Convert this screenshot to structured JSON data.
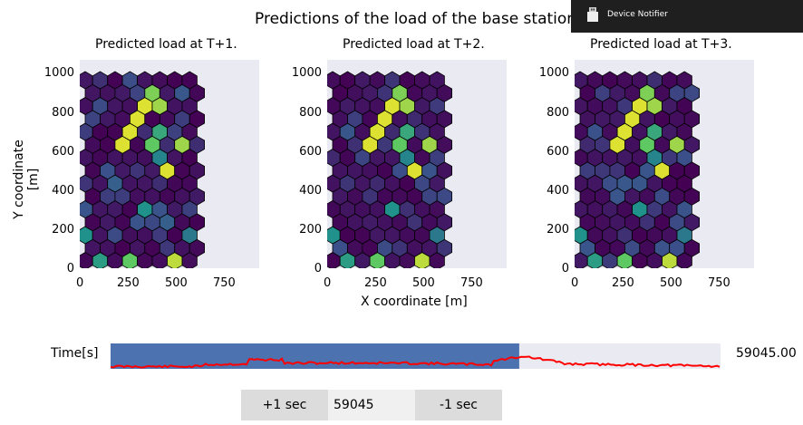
{
  "figure": {
    "suptitle": "Predictions of the load of the base stations",
    "ylabel": "Y coordinate [m]",
    "xlabel": "X coordinate [m]",
    "xticks": [
      "0",
      "250",
      "500",
      "750"
    ],
    "yticks": [
      "1000",
      "800",
      "600",
      "400",
      "200",
      "0"
    ],
    "panels": [
      {
        "title": "Predicted load at T+1."
      },
      {
        "title": "Predicted load at T+2."
      },
      {
        "title": "Predicted load at T+3."
      }
    ]
  },
  "notifier": {
    "label": "Device Notifier",
    "icon": "usb-drive-icon"
  },
  "time_slider": {
    "label": "Time[s]",
    "value_text": "59045.00",
    "value": 59045,
    "fill_fraction": 0.67,
    "fill_color": "#4c72b0",
    "track_color": "#eaeaf2",
    "line_color": "#ff0000"
  },
  "controls": {
    "plus_label": "+1 sec",
    "textbox_value": "59045",
    "minus_label": "-1 sec"
  },
  "chart_data": [
    {
      "type": "heatmap",
      "title": "Predicted load at T+1.",
      "xlabel": "",
      "ylabel": "Y coordinate [m]",
      "xlim": [
        0,
        900
      ],
      "ylim": [
        0,
        1050
      ],
      "hot": [
        [
          0,
          1,
          0.55
        ],
        [
          0,
          3,
          0.75
        ],
        [
          0,
          6,
          0.9
        ],
        [
          1,
          9,
          0.95
        ],
        [
          2,
          0,
          0.5
        ],
        [
          3,
          11,
          0.85
        ],
        [
          4,
          4,
          0.5
        ],
        [
          5,
          10,
          0.6
        ],
        [
          6,
          12,
          0.4
        ],
        [
          6,
          2,
          0.3
        ],
        [
          7,
          14,
          0.95
        ],
        [
          7,
          5,
          0.95
        ],
        [
          7,
          8,
          0.5
        ],
        [
          8,
          11,
          0.4
        ],
        [
          8,
          9,
          0.55
        ],
        [
          9,
          2,
          0.95
        ],
        [
          9,
          4,
          0.75
        ],
        [
          9,
          6,
          0.85
        ],
        [
          10,
          3,
          0.95
        ],
        [
          10,
          5,
          0.6
        ],
        [
          11,
          8,
          0.75
        ],
        [
          11,
          3,
          0.95
        ],
        [
          12,
          5,
          0.85
        ],
        [
          12,
          4,
          0.95
        ],
        [
          13,
          4,
          0.8
        ],
        [
          8,
          5,
          0.45
        ],
        [
          2,
          7,
          0.4
        ],
        [
          5,
          12,
          0.35
        ],
        [
          3,
          5,
          0.3
        ]
      ]
    },
    {
      "type": "heatmap",
      "title": "Predicted load at T+2.",
      "xlabel": "X coordinate [m]",
      "ylabel": "",
      "xlim": [
        0,
        900
      ],
      "ylim": [
        0,
        1050
      ],
      "hot": [
        [
          0,
          1,
          0.55
        ],
        [
          0,
          3,
          0.75
        ],
        [
          0,
          6,
          0.9
        ],
        [
          1,
          9,
          0.95
        ],
        [
          2,
          0,
          0.5
        ],
        [
          3,
          11,
          0.85
        ],
        [
          4,
          4,
          0.5
        ],
        [
          5,
          10,
          0.6
        ],
        [
          6,
          12,
          0.45
        ],
        [
          7,
          14,
          0.95
        ],
        [
          7,
          5,
          0.95
        ],
        [
          7,
          8,
          0.5
        ],
        [
          8,
          11,
          0.45
        ],
        [
          8,
          9,
          0.55
        ],
        [
          9,
          2,
          0.95
        ],
        [
          9,
          4,
          0.75
        ],
        [
          9,
          6,
          0.85
        ],
        [
          10,
          3,
          0.95
        ],
        [
          10,
          5,
          0.6
        ],
        [
          11,
          8,
          0.75
        ],
        [
          11,
          3,
          0.95
        ],
        [
          12,
          5,
          0.85
        ],
        [
          12,
          4,
          0.95
        ],
        [
          13,
          4,
          0.8
        ],
        [
          8,
          5,
          0.45
        ],
        [
          2,
          7,
          0.4
        ]
      ]
    },
    {
      "type": "heatmap",
      "title": "Predicted load at T+3.",
      "xlabel": "",
      "ylabel": "",
      "xlim": [
        0,
        900
      ],
      "ylim": [
        0,
        1050
      ],
      "hot": [
        [
          0,
          1,
          0.55
        ],
        [
          0,
          3,
          0.75
        ],
        [
          0,
          6,
          0.9
        ],
        [
          1,
          9,
          0.95
        ],
        [
          2,
          0,
          0.5
        ],
        [
          3,
          11,
          0.85
        ],
        [
          4,
          4,
          0.5
        ],
        [
          5,
          10,
          0.6
        ],
        [
          6,
          12,
          0.45
        ],
        [
          7,
          14,
          0.95
        ],
        [
          7,
          5,
          0.95
        ],
        [
          7,
          8,
          0.5
        ],
        [
          8,
          11,
          0.45
        ],
        [
          8,
          9,
          0.55
        ],
        [
          9,
          2,
          0.95
        ],
        [
          9,
          4,
          0.75
        ],
        [
          9,
          6,
          0.85
        ],
        [
          10,
          3,
          0.95
        ],
        [
          10,
          5,
          0.6
        ],
        [
          11,
          8,
          0.75
        ],
        [
          11,
          3,
          0.95
        ],
        [
          12,
          5,
          0.85
        ],
        [
          12,
          4,
          0.95
        ],
        [
          13,
          4,
          0.8
        ],
        [
          8,
          5,
          0.45
        ],
        [
          2,
          7,
          0.4
        ]
      ]
    }
  ]
}
